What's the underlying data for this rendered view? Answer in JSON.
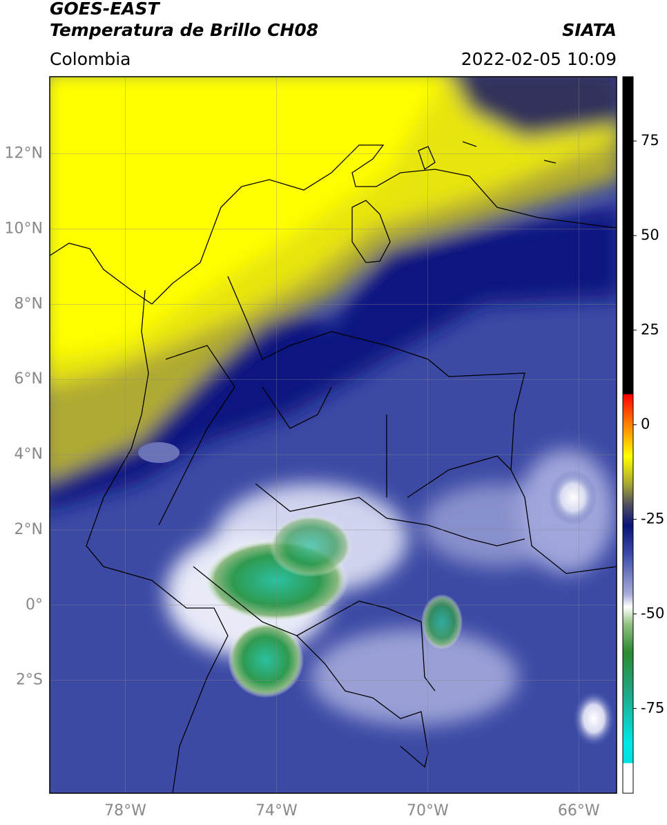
{
  "header": {
    "title": "GOES-EAST",
    "subtitle": "Temperatura de Brillo CH08",
    "source": "SIATA",
    "region": "Colombia",
    "datetime": "2022-02-05 10:09"
  },
  "map": {
    "lonlim": [
      -80,
      -65
    ],
    "latlim": [
      -5,
      14.05
    ],
    "lat_ticks": [
      {
        "value": 12,
        "label": "12°N"
      },
      {
        "value": 10,
        "label": "10°N"
      },
      {
        "value": 8,
        "label": "8°N"
      },
      {
        "value": 6,
        "label": "6°N"
      },
      {
        "value": 4,
        "label": "4°N"
      },
      {
        "value": 2,
        "label": "2°N"
      },
      {
        "value": 0,
        "label": "0°"
      },
      {
        "value": -2,
        "label": "2°S"
      }
    ],
    "lon_ticks": [
      {
        "value": -78,
        "label": "78°W"
      },
      {
        "value": -74,
        "label": "74°W"
      },
      {
        "value": -70,
        "label": "70°W"
      },
      {
        "value": -66,
        "label": "66°W"
      }
    ]
  },
  "colorbar": {
    "lim": [
      -97.4,
      92
    ],
    "ticks": [
      75,
      50,
      25,
      0,
      -25,
      -50,
      -75
    ]
  }
}
